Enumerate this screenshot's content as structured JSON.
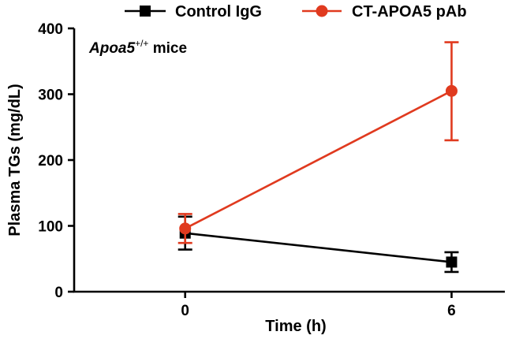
{
  "chart_data": {
    "type": "line",
    "title": "",
    "annotation": {
      "prefix": "Apoa5",
      "superscript": "+/+",
      "suffix": " mice"
    },
    "xlabel": "Time (h)",
    "ylabel": "Plasma TGs (mg/dL)",
    "x": [
      0,
      6
    ],
    "xticks": [
      0,
      6
    ],
    "xlim": [
      -2.5,
      7.2
    ],
    "ylim": [
      0,
      400
    ],
    "yticks": [
      0,
      100,
      200,
      300,
      400
    ],
    "legend_position": "top",
    "series": [
      {
        "name": "Control IgG",
        "color": "#000000",
        "marker": "square",
        "values": [
          89,
          45
        ],
        "err_low": [
          64,
          30
        ],
        "err_high": [
          114,
          60
        ]
      },
      {
        "name": "CT-APOA5 pAb",
        "color": "#e03a1f",
        "marker": "circle",
        "values": [
          96,
          305
        ],
        "err_low": [
          74,
          230
        ],
        "err_high": [
          118,
          379
        ]
      }
    ]
  }
}
